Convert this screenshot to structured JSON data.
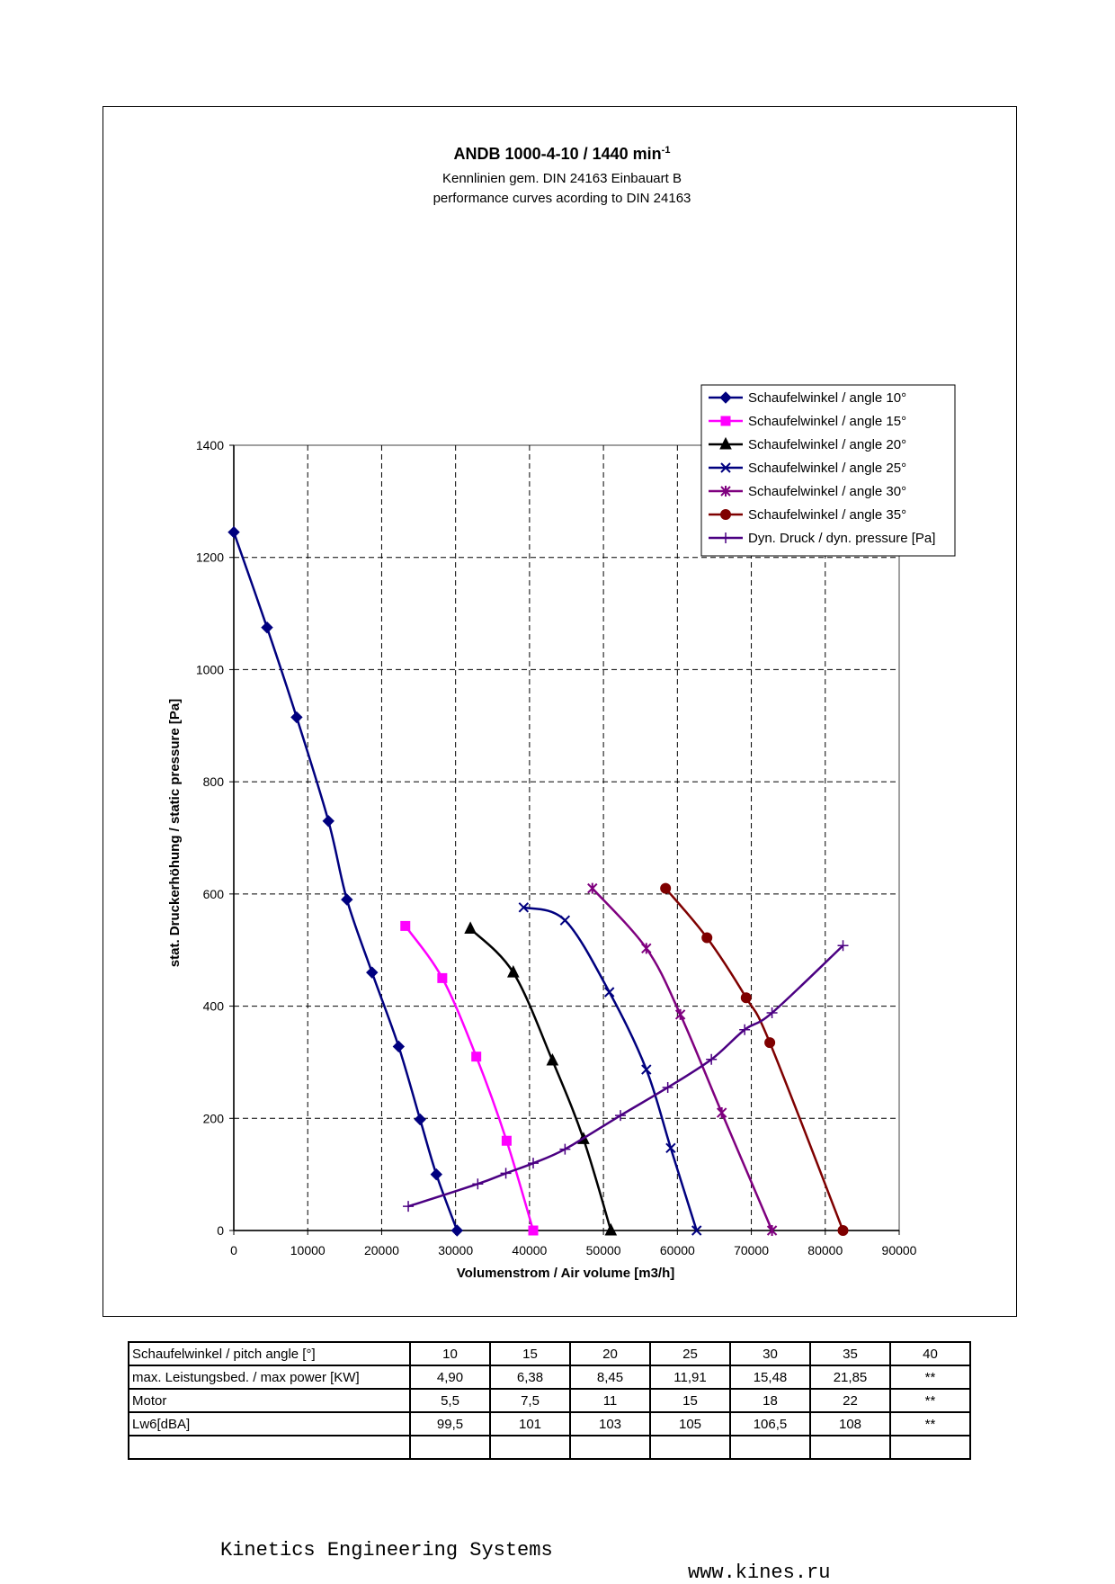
{
  "chart_data": {
    "type": "line",
    "title": "ANDB 1000-4-10 / 1440 min",
    "title_superscript": "-1",
    "subtitle_lines": [
      "Kennlinien gem. DIN 24163 Einbauart B",
      "performance curves acording to DIN 24163"
    ],
    "xlabel": "Volumenstrom / Air volume [m3/h]",
    "ylabel": "stat. Druckerhöhung / static pressure [Pa]",
    "xlim": [
      0,
      90000
    ],
    "ylim": [
      0,
      1400
    ],
    "xticks": [
      0,
      10000,
      20000,
      30000,
      40000,
      50000,
      60000,
      70000,
      80000,
      90000
    ],
    "yticks": [
      0,
      200,
      400,
      600,
      800,
      1000,
      1200,
      1400
    ],
    "grid": true,
    "legend_position": "top-right",
    "series": [
      {
        "name": "Schaufelwinkel / angle 10°",
        "color": "#00007f",
        "marker": "diamond",
        "x": [
          0,
          4500,
          8500,
          12800,
          15300,
          18700,
          22300,
          25200,
          27400,
          30200
        ],
        "y": [
          1245,
          1075,
          915,
          730,
          590,
          460,
          328,
          198,
          100,
          0
        ]
      },
      {
        "name": "Schaufelwinkel / angle 15°",
        "color": "#ff00ff",
        "marker": "square",
        "x": [
          23200,
          28200,
          32800,
          36900,
          40500
        ],
        "y": [
          543,
          450,
          310,
          160,
          0
        ]
      },
      {
        "name": "Schaufelwinkel / angle 20°",
        "color": "#000000",
        "marker": "triangle",
        "x": [
          32000,
          37800,
          43100,
          47300,
          51000
        ],
        "y": [
          538,
          460,
          303,
          163,
          0
        ]
      },
      {
        "name": "Schaufelwinkel / angle 25°",
        "color": "#00007f",
        "marker": "x",
        "x": [
          39200,
          44800,
          50800,
          55800,
          59100,
          62600
        ],
        "y": [
          576,
          553,
          425,
          287,
          147,
          0
        ]
      },
      {
        "name": "Schaufelwinkel / angle 30°",
        "color": "#7f007f",
        "marker": "star",
        "x": [
          48500,
          55800,
          60400,
          66000,
          72800
        ],
        "y": [
          610,
          503,
          385,
          210,
          0
        ]
      },
      {
        "name": "Schaufelwinkel / angle 35°",
        "color": "#7f0000",
        "marker": "circle",
        "x": [
          58400,
          64000,
          69300,
          72500,
          82400
        ],
        "y": [
          610,
          522,
          415,
          335,
          0
        ]
      },
      {
        "name": "Dyn. Druck / dyn. pressure [Pa]",
        "color": "#4b0082",
        "marker": "plus",
        "x": [
          23600,
          33000,
          36800,
          40500,
          44800,
          52300,
          58700,
          64600,
          69100,
          72800,
          82400
        ],
        "y": [
          43,
          83,
          102,
          120,
          145,
          205,
          255,
          305,
          358,
          388,
          508
        ]
      }
    ]
  },
  "table": {
    "rows": [
      {
        "label": "Schaufelwinkel / pitch angle [°]",
        "values": [
          "10",
          "15",
          "20",
          "25",
          "30",
          "35",
          "40"
        ]
      },
      {
        "label": "max. Leistungsbed. / max power [KW]",
        "values": [
          "4,90",
          "6,38",
          "8,45",
          "11,91",
          "15,48",
          "21,85",
          "**"
        ]
      },
      {
        "label": "Motor",
        "values": [
          "5,5",
          "7,5",
          "11",
          "15",
          "18",
          "22",
          "**"
        ]
      },
      {
        "label": "Lw6[dBA]",
        "values": [
          "99,5",
          "101",
          "103",
          "105",
          "106,5",
          "108",
          "**"
        ]
      },
      {
        "label": "",
        "values": [
          "",
          "",
          "",
          "",
          "",
          "",
          ""
        ]
      }
    ]
  },
  "footer": {
    "company": "Kinetics Engineering Systems",
    "website": "www.kines.ru"
  }
}
